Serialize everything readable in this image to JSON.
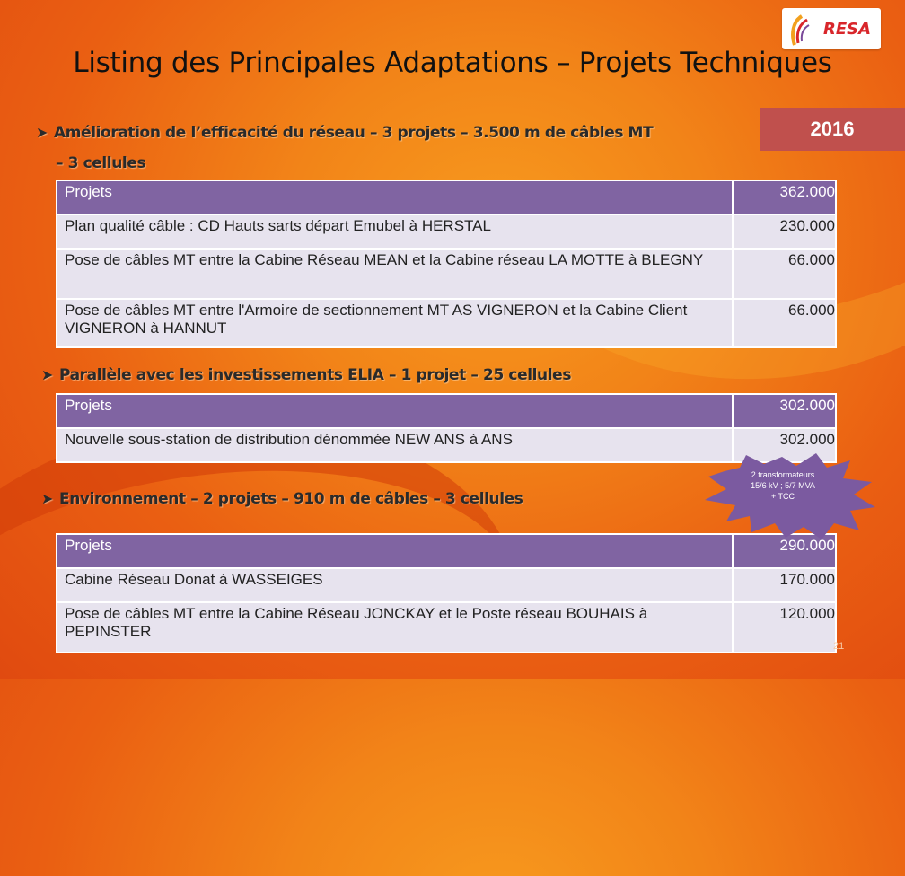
{
  "logo": {
    "text": "RESA"
  },
  "title": "Listing des Principales Adaptations – Projets Techniques",
  "year": "2016",
  "sections": [
    {
      "heading_line1": "Amélioration de l’efficacité du réseau – 3 projets – 3.500 m de câbles MT",
      "heading_line2": "– 3 cellules",
      "table": {
        "header": {
          "label": "Projets",
          "amount": "362.000"
        },
        "rows": [
          {
            "label": "Plan qualité câble : CD Hauts sarts départ Emubel à HERSTAL",
            "amount": "230.000"
          },
          {
            "label": "Pose de câbles MT entre la Cabine Réseau MEAN et la Cabine réseau LA MOTTE à BLEGNY",
            "amount": "66.000"
          },
          {
            "label": "Pose de câbles MT entre l'Armoire de sectionnement MT AS VIGNERON et la Cabine Client VIGNERON à HANNUT",
            "amount": "66.000"
          }
        ]
      }
    },
    {
      "heading_line1": "Parallèle avec les investissements ELIA – 1 projet – 25 cellules",
      "table": {
        "header": {
          "label": "Projets",
          "amount": "302.000"
        },
        "rows": [
          {
            "label": "Nouvelle sous-station de distribution dénommée NEW ANS à ANS",
            "amount": "302.000"
          }
        ]
      }
    },
    {
      "heading_line1": "Environnement – 2 projets – 910 m de câbles – 3 cellules",
      "table": {
        "header": {
          "label": "Projets",
          "amount": "290.000"
        },
        "rows": [
          {
            "label": "Cabine Réseau  Donat à WASSEIGES",
            "amount": "170.000"
          },
          {
            "label": "Pose de câbles MT entre la Cabine Réseau JONCKAY et le Poste réseau BOUHAIS à PEPINSTER",
            "amount": "120.000"
          }
        ]
      }
    }
  ],
  "callout": {
    "line1": "2 transformateurs",
    "line2": "15/6 kV ; 5/7 MVA",
    "line3": "+ TCC"
  },
  "page_number": "21",
  "colors": {
    "header_bg": "#8064a2",
    "row_bg": "#e7e3ee",
    "year_bg": "#c0504d",
    "callout_bg": "#7b5aa0"
  },
  "icons": {
    "bullet": "arrow-bullet-icon",
    "logo": "resa-logo-icon"
  }
}
